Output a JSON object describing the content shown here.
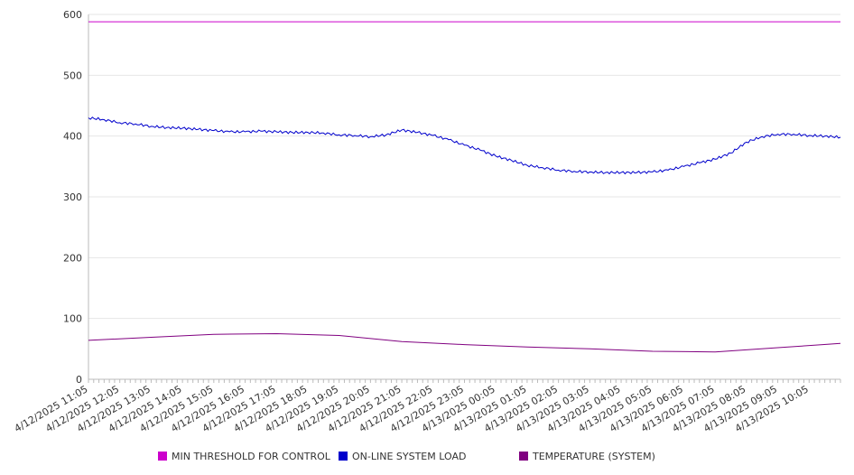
{
  "chart_data": {
    "type": "line",
    "title": "",
    "xlabel": "",
    "ylabel": "",
    "ylim": [
      0,
      600
    ],
    "yticks": [
      0,
      100,
      200,
      300,
      400,
      500,
      600
    ],
    "grid": true,
    "legend_position": "bottom",
    "x_tick_labels": [
      "4/12/2025 11:05",
      "4/12/2025 12:05",
      "4/12/2025 13:05",
      "4/12/2025 14:05",
      "4/12/2025 15:05",
      "4/12/2025 16:05",
      "4/12/2025 17:05",
      "4/12/2025 18:05",
      "4/12/2025 19:05",
      "4/12/2025 20:05",
      "4/12/2025 21:05",
      "4/12/2025 22:05",
      "4/12/2025 23:05",
      "4/13/2025 00:05",
      "4/13/2025 01:05",
      "4/13/2025 02:05",
      "4/13/2025 03:05",
      "4/13/2025 04:05",
      "4/13/2025 05:05",
      "4/13/2025 06:05",
      "4/13/2025 07:05",
      "4/13/2025 08:05",
      "4/13/2025 09:05",
      "4/13/2025 10:05"
    ],
    "x_start": "4/12/2025 11:05",
    "x_end": "4/13/2025 11:05",
    "series": [
      {
        "name": "MIN THRESHOLD FOR CONTROL",
        "color": "#cc00cc",
        "x": [
          "4/12/2025 11:05",
          "4/13/2025 11:05"
        ],
        "values": [
          588,
          588
        ]
      },
      {
        "name": "ON-LINE SYSTEM LOAD",
        "color": "#0000cc",
        "x": [
          "4/12/2025 11:05",
          "4/12/2025 11:35",
          "4/12/2025 12:05",
          "4/12/2025 12:35",
          "4/12/2025 13:05",
          "4/12/2025 13:35",
          "4/12/2025 14:05",
          "4/12/2025 14:35",
          "4/12/2025 15:05",
          "4/12/2025 15:35",
          "4/12/2025 16:05",
          "4/12/2025 16:35",
          "4/12/2025 17:05",
          "4/12/2025 17:35",
          "4/12/2025 18:05",
          "4/12/2025 18:35",
          "4/12/2025 19:05",
          "4/12/2025 19:35",
          "4/12/2025 20:05",
          "4/12/2025 20:35",
          "4/12/2025 21:05",
          "4/12/2025 21:35",
          "4/12/2025 22:05",
          "4/12/2025 22:35",
          "4/12/2025 23:05",
          "4/12/2025 23:35",
          "4/13/2025 00:05",
          "4/13/2025 00:35",
          "4/13/2025 01:05",
          "4/13/2025 01:35",
          "4/13/2025 02:05",
          "4/13/2025 02:35",
          "4/13/2025 03:05",
          "4/13/2025 03:35",
          "4/13/2025 04:05",
          "4/13/2025 04:35",
          "4/13/2025 05:05",
          "4/13/2025 05:35",
          "4/13/2025 06:05",
          "4/13/2025 06:35",
          "4/13/2025 07:05",
          "4/13/2025 07:35",
          "4/13/2025 08:05",
          "4/13/2025 08:35",
          "4/13/2025 09:05",
          "4/13/2025 09:35",
          "4/13/2025 10:05",
          "4/13/2025 10:35",
          "4/13/2025 11:05"
        ],
        "values": [
          430,
          427,
          422,
          420,
          416,
          414,
          413,
          411,
          409,
          407,
          407,
          408,
          407,
          406,
          406,
          405,
          402,
          401,
          399,
          402,
          410,
          406,
          401,
          394,
          385,
          377,
          367,
          360,
          352,
          348,
          344,
          342,
          341,
          340,
          340,
          340,
          341,
          344,
          350,
          356,
          362,
          372,
          390,
          399,
          403,
          403,
          401,
          400,
          398
        ]
      },
      {
        "name": "TEMPERATURE (SYSTEM)",
        "color": "#800080",
        "x": [
          "4/12/2025 11:05",
          "4/12/2025 13:05",
          "4/12/2025 15:05",
          "4/12/2025 17:05",
          "4/12/2025 19:05",
          "4/12/2025 21:05",
          "4/12/2025 23:05",
          "4/13/2025 01:05",
          "4/13/2025 03:05",
          "4/13/2025 05:05",
          "4/13/2025 07:05",
          "4/13/2025 09:05",
          "4/13/2025 11:05"
        ],
        "values": [
          64,
          69,
          74,
          75,
          72,
          62,
          57,
          53,
          50,
          46,
          45,
          52,
          59
        ]
      }
    ]
  }
}
